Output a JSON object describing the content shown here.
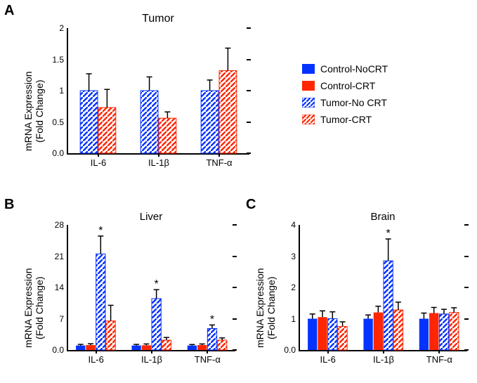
{
  "font_family": "Arial, Helvetica, sans-serif",
  "colors": {
    "blue": "#0433ff",
    "red": "#ff2600",
    "axis": "#000000",
    "bg": "#ffffff"
  },
  "legend": {
    "items": [
      {
        "label": "Control-NoCRT",
        "fill": "solid",
        "color": "#0433ff"
      },
      {
        "label": "Control-CRT",
        "fill": "solid",
        "color": "#ff2600"
      },
      {
        "label": "Tumor-No CRT",
        "fill": "hatch",
        "color": "#0433ff"
      },
      {
        "label": "Tumor-CRT",
        "fill": "hatch",
        "color": "#ff2600"
      }
    ]
  },
  "ylabel_line1": "mRNA Expression",
  "ylabel_line2": "(Fold Change)",
  "charts": {
    "A": {
      "panel_letter": "A",
      "title": "Tumor",
      "categories": [
        "IL-6",
        "IL-1β",
        "TNF-α"
      ],
      "ylim": [
        0,
        2.0
      ],
      "yticks": [
        0,
        0.5,
        1.0,
        1.5,
        2.0
      ],
      "series": [
        {
          "key": "Tumor-No CRT",
          "fill": "hatch",
          "color": "#0433ff",
          "values": [
            1.0,
            1.0,
            1.0
          ],
          "err": [
            0.27,
            0.22,
            0.17
          ]
        },
        {
          "key": "Tumor-CRT",
          "fill": "hatch",
          "color": "#ff2600",
          "values": [
            0.73,
            0.56,
            1.32
          ],
          "err": [
            0.29,
            0.1,
            0.36
          ]
        }
      ],
      "bar_width": 0.3,
      "group_gap": 0.45
    },
    "B": {
      "panel_letter": "B",
      "title": "Liver",
      "categories": [
        "IL-6",
        "IL-1β",
        "TNF-α"
      ],
      "ylim": [
        0,
        28
      ],
      "yticks": [
        0,
        7,
        14,
        21,
        28
      ],
      "series": [
        {
          "key": "Control-NoCRT",
          "fill": "solid",
          "color": "#0433ff",
          "values": [
            1.0,
            1.0,
            1.0
          ],
          "err": [
            0.25,
            0.25,
            0.22
          ]
        },
        {
          "key": "Control-CRT",
          "fill": "solid",
          "color": "#ff2600",
          "values": [
            1.1,
            1.05,
            1.1
          ],
          "err": [
            0.3,
            0.3,
            0.25
          ]
        },
        {
          "key": "Tumor-No CRT",
          "fill": "hatch",
          "color": "#0433ff",
          "values": [
            21.5,
            11.5,
            4.8
          ],
          "err": [
            4.0,
            2.0,
            0.8
          ],
          "sig": [
            true,
            true,
            true
          ]
        },
        {
          "key": "Tumor-CRT",
          "fill": "hatch",
          "color": "#ff2600",
          "values": [
            6.5,
            2.2,
            2.2
          ],
          "err": [
            3.5,
            0.6,
            0.5
          ]
        }
      ],
      "bar_width": 0.18,
      "group_gap": 0.18
    },
    "C": {
      "panel_letter": "C",
      "title": "Brain",
      "categories": [
        "IL-6",
        "IL-1β",
        "TNF-α"
      ],
      "ylim": [
        0,
        4
      ],
      "yticks": [
        0,
        1,
        2,
        3,
        4
      ],
      "series": [
        {
          "key": "Control-NoCRT",
          "fill": "solid",
          "color": "#0433ff",
          "values": [
            1.0,
            1.0,
            1.0
          ],
          "err": [
            0.15,
            0.12,
            0.18
          ]
        },
        {
          "key": "Control-CRT",
          "fill": "solid",
          "color": "#ff2600",
          "values": [
            1.05,
            1.2,
            1.18
          ],
          "err": [
            0.2,
            0.2,
            0.18
          ]
        },
        {
          "key": "Tumor-No CRT",
          "fill": "hatch",
          "color": "#0433ff",
          "values": [
            1.0,
            2.85,
            1.15
          ],
          "err": [
            0.22,
            0.7,
            0.15
          ],
          "sig": [
            false,
            true,
            false
          ]
        },
        {
          "key": "Tumor-CRT",
          "fill": "hatch",
          "color": "#ff2600",
          "values": [
            0.75,
            1.28,
            1.2
          ],
          "err": [
            0.15,
            0.25,
            0.15
          ]
        }
      ],
      "bar_width": 0.18,
      "group_gap": 0.18
    }
  }
}
